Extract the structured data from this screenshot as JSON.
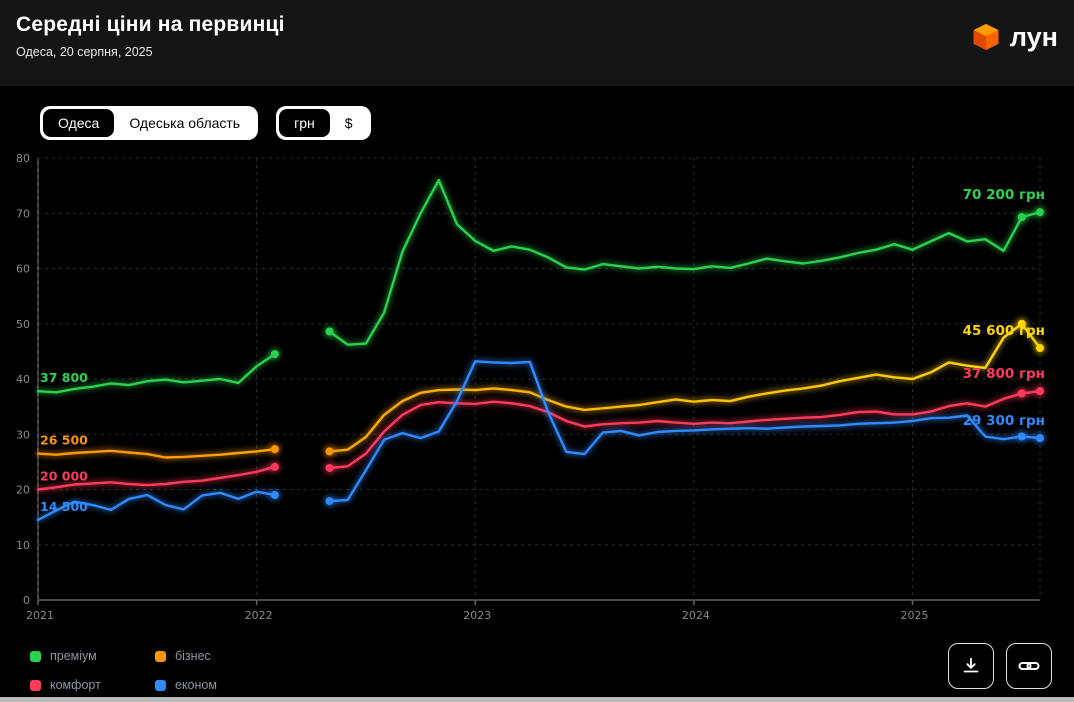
{
  "header": {
    "title": "Середні ціни на первинці",
    "subtitle": "Одеса, 20 серпня, 2025",
    "brand": "лун"
  },
  "filters": {
    "location": {
      "options": [
        "Одеса",
        "Одеська область"
      ],
      "selected": "Одеса"
    },
    "currency": {
      "options": [
        "грн",
        "$"
      ],
      "selected": "грн"
    }
  },
  "icons": {
    "logo": "lun-cube-icon",
    "download": "download-icon",
    "link": "link-icon"
  },
  "legend": {
    "items": [
      {
        "label": "преміум",
        "color": "#2bd24f"
      },
      {
        "label": "бізнес",
        "color": "#ff9500"
      },
      {
        "label": "комфорт",
        "color": "#ff3b5c"
      },
      {
        "label": "економ",
        "color": "#2f8bff"
      }
    ]
  },
  "chart_data": {
    "type": "line",
    "title": "Середні ціни на первинці",
    "x_start": "2021-01",
    "x_end": "2025-08",
    "x_interval": "month",
    "x_tick_labels": [
      "2021",
      "2022",
      "2023",
      "2024",
      "2025"
    ],
    "x_tick_month_index": [
      0,
      12,
      24,
      36,
      48
    ],
    "ylim": [
      0,
      80
    ],
    "y_ticks": [
      0,
      10,
      20,
      30,
      40,
      50,
      60,
      70,
      80
    ],
    "y_unit": "тис. грн",
    "data_gap": [
      "2022-03",
      "2022-04"
    ],
    "grid": "dashed",
    "legend_position": "bottom-left",
    "series": [
      {
        "name": "преміум",
        "color": "#2bd24f",
        "start_label": "37 800",
        "end_label": "70 200 грн",
        "values": [
          37.8,
          37.6,
          38.2,
          38.6,
          39.2,
          38.9,
          39.6,
          39.9,
          39.4,
          39.7,
          40.0,
          39.3,
          42.3,
          44.5,
          null,
          null,
          48.6,
          46.2,
          46.4,
          52.0,
          63.0,
          70.0,
          76.0,
          68.0,
          65.0,
          63.2,
          64.0,
          63.4,
          62.0,
          60.2,
          59.8,
          60.8,
          60.4,
          60.0,
          60.3,
          60.0,
          59.9,
          60.4,
          60.1,
          60.9,
          61.8,
          61.3,
          60.9,
          61.4,
          62.0,
          62.8,
          63.4,
          64.4,
          63.4,
          64.9,
          66.4,
          64.9,
          65.3,
          63.2,
          69.3,
          70.2
        ]
      },
      {
        "name": "бізнес",
        "color": "#ff9500",
        "color_end": "#ffd60a",
        "start_label": "26 500",
        "end_label": "45 600 грн",
        "values": [
          26.5,
          26.3,
          26.6,
          26.8,
          27.0,
          26.7,
          26.4,
          25.8,
          25.9,
          26.1,
          26.3,
          26.6,
          26.9,
          27.3,
          null,
          null,
          26.9,
          27.2,
          29.5,
          33.5,
          36.0,
          37.5,
          38.0,
          38.1,
          38.0,
          38.3,
          38.0,
          37.6,
          36.2,
          35.0,
          34.4,
          34.7,
          35.0,
          35.3,
          35.8,
          36.3,
          35.9,
          36.2,
          36.0,
          36.8,
          37.4,
          37.9,
          38.3,
          38.8,
          39.6,
          40.2,
          40.8,
          40.3,
          40.0,
          41.2,
          43.0,
          42.4,
          42.0,
          47.5,
          50.0,
          45.6
        ]
      },
      {
        "name": "комфорт",
        "color": "#ff3b5c",
        "start_label": "20 000",
        "end_label": "37 800 грн",
        "values": [
          20.0,
          20.4,
          20.9,
          21.1,
          21.3,
          21.0,
          20.8,
          21.0,
          21.4,
          21.6,
          22.1,
          22.6,
          23.2,
          24.1,
          null,
          null,
          23.9,
          24.2,
          26.5,
          30.5,
          33.5,
          35.3,
          35.8,
          35.6,
          35.5,
          35.9,
          35.6,
          35.1,
          34.0,
          32.4,
          31.4,
          31.8,
          32.0,
          32.1,
          32.4,
          32.1,
          31.9,
          32.1,
          32.0,
          32.3,
          32.6,
          32.8,
          33.0,
          33.1,
          33.5,
          34.0,
          34.1,
          33.6,
          33.6,
          34.1,
          35.1,
          35.6,
          35.0,
          36.4,
          37.4,
          37.8
        ]
      },
      {
        "name": "економ",
        "color": "#2f8bff",
        "start_label": "14 500",
        "end_label": "29 300 грн",
        "values": [
          14.5,
          16.2,
          17.8,
          17.2,
          16.3,
          18.3,
          19.0,
          17.2,
          16.4,
          18.9,
          19.4,
          18.3,
          19.6,
          19.0,
          null,
          null,
          17.9,
          18.1,
          23.5,
          29.0,
          30.2,
          29.3,
          30.5,
          36.0,
          43.2,
          43.0,
          42.9,
          43.1,
          34.0,
          26.8,
          26.4,
          30.3,
          30.6,
          29.8,
          30.4,
          30.6,
          30.7,
          30.9,
          31.0,
          31.1,
          31.0,
          31.2,
          31.4,
          31.5,
          31.6,
          31.9,
          32.0,
          32.1,
          32.4,
          32.9,
          33.0,
          33.4,
          29.6,
          29.1,
          29.6,
          29.3
        ]
      }
    ]
  }
}
